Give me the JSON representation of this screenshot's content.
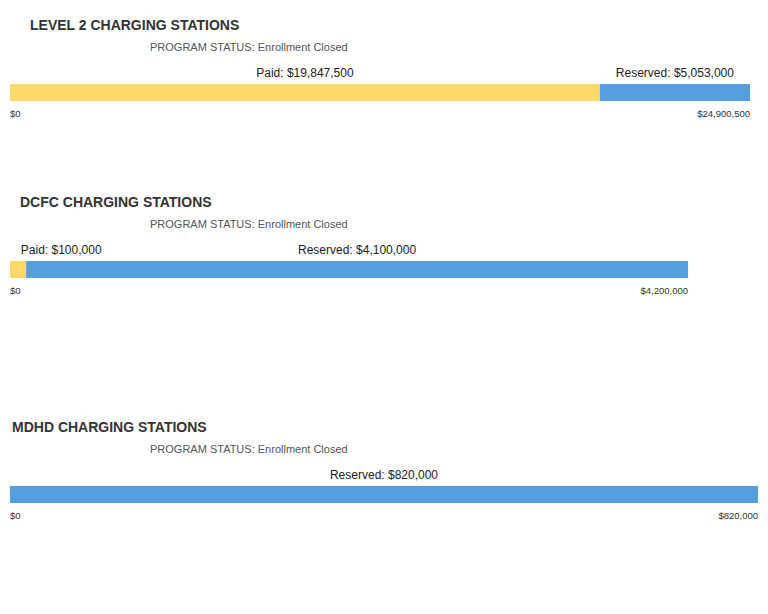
{
  "chart_data": [
    {
      "type": "bar",
      "orientation": "horizontal",
      "stacked": true,
      "data_labels": true,
      "tick_labels": "x",
      "title": "LEVEL 2 CHARGING STATIONS",
      "subtitle": "PROGRAM STATUS: Enrollment Closed",
      "series": [
        {
          "name": "Paid",
          "color": "#fdd96b",
          "values": [
            19847500
          ],
          "value_labels": [
            "Paid: $19,847,500"
          ]
        },
        {
          "name": "Reserved",
          "color": "#559fe1",
          "values": [
            5053000
          ],
          "value_labels": [
            "Reserved: $5,053,000"
          ]
        }
      ],
      "xlim": [
        0,
        24900500
      ],
      "xticks": [
        {
          "value": 0,
          "label": "$0"
        },
        {
          "value": 24900500,
          "label": "$24,900,500"
        }
      ]
    },
    {
      "type": "bar",
      "orientation": "horizontal",
      "stacked": true,
      "data_labels": true,
      "tick_labels": "x",
      "title": "DCFC CHARGING STATIONS",
      "subtitle": "PROGRAM STATUS: Enrollment Closed",
      "series": [
        {
          "name": "Paid",
          "color": "#fdd96b",
          "values": [
            100000
          ],
          "value_labels": [
            "Paid: $100,000"
          ]
        },
        {
          "name": "Reserved",
          "color": "#559fe1",
          "values": [
            4100000
          ],
          "value_labels": [
            "Reserved: $4,100,000"
          ]
        }
      ],
      "xlim": [
        0,
        4200000
      ],
      "xticks": [
        {
          "value": 0,
          "label": "$0"
        },
        {
          "value": 4200000,
          "label": "$4,200,000"
        }
      ]
    },
    {
      "type": "bar",
      "orientation": "horizontal",
      "stacked": true,
      "data_labels": true,
      "tick_labels": "x",
      "title": "MDHD CHARGING STATIONS",
      "subtitle": "PROGRAM STATUS: Enrollment Closed",
      "series": [
        {
          "name": "Reserved",
          "color": "#559fe1",
          "values": [
            820000
          ],
          "value_labels": [
            "Reserved: $820,000"
          ]
        }
      ],
      "xlim": [
        0,
        820000
      ],
      "xticks": [
        {
          "value": 0,
          "label": "$0"
        },
        {
          "value": 820000,
          "label": "$820,000"
        }
      ]
    }
  ]
}
